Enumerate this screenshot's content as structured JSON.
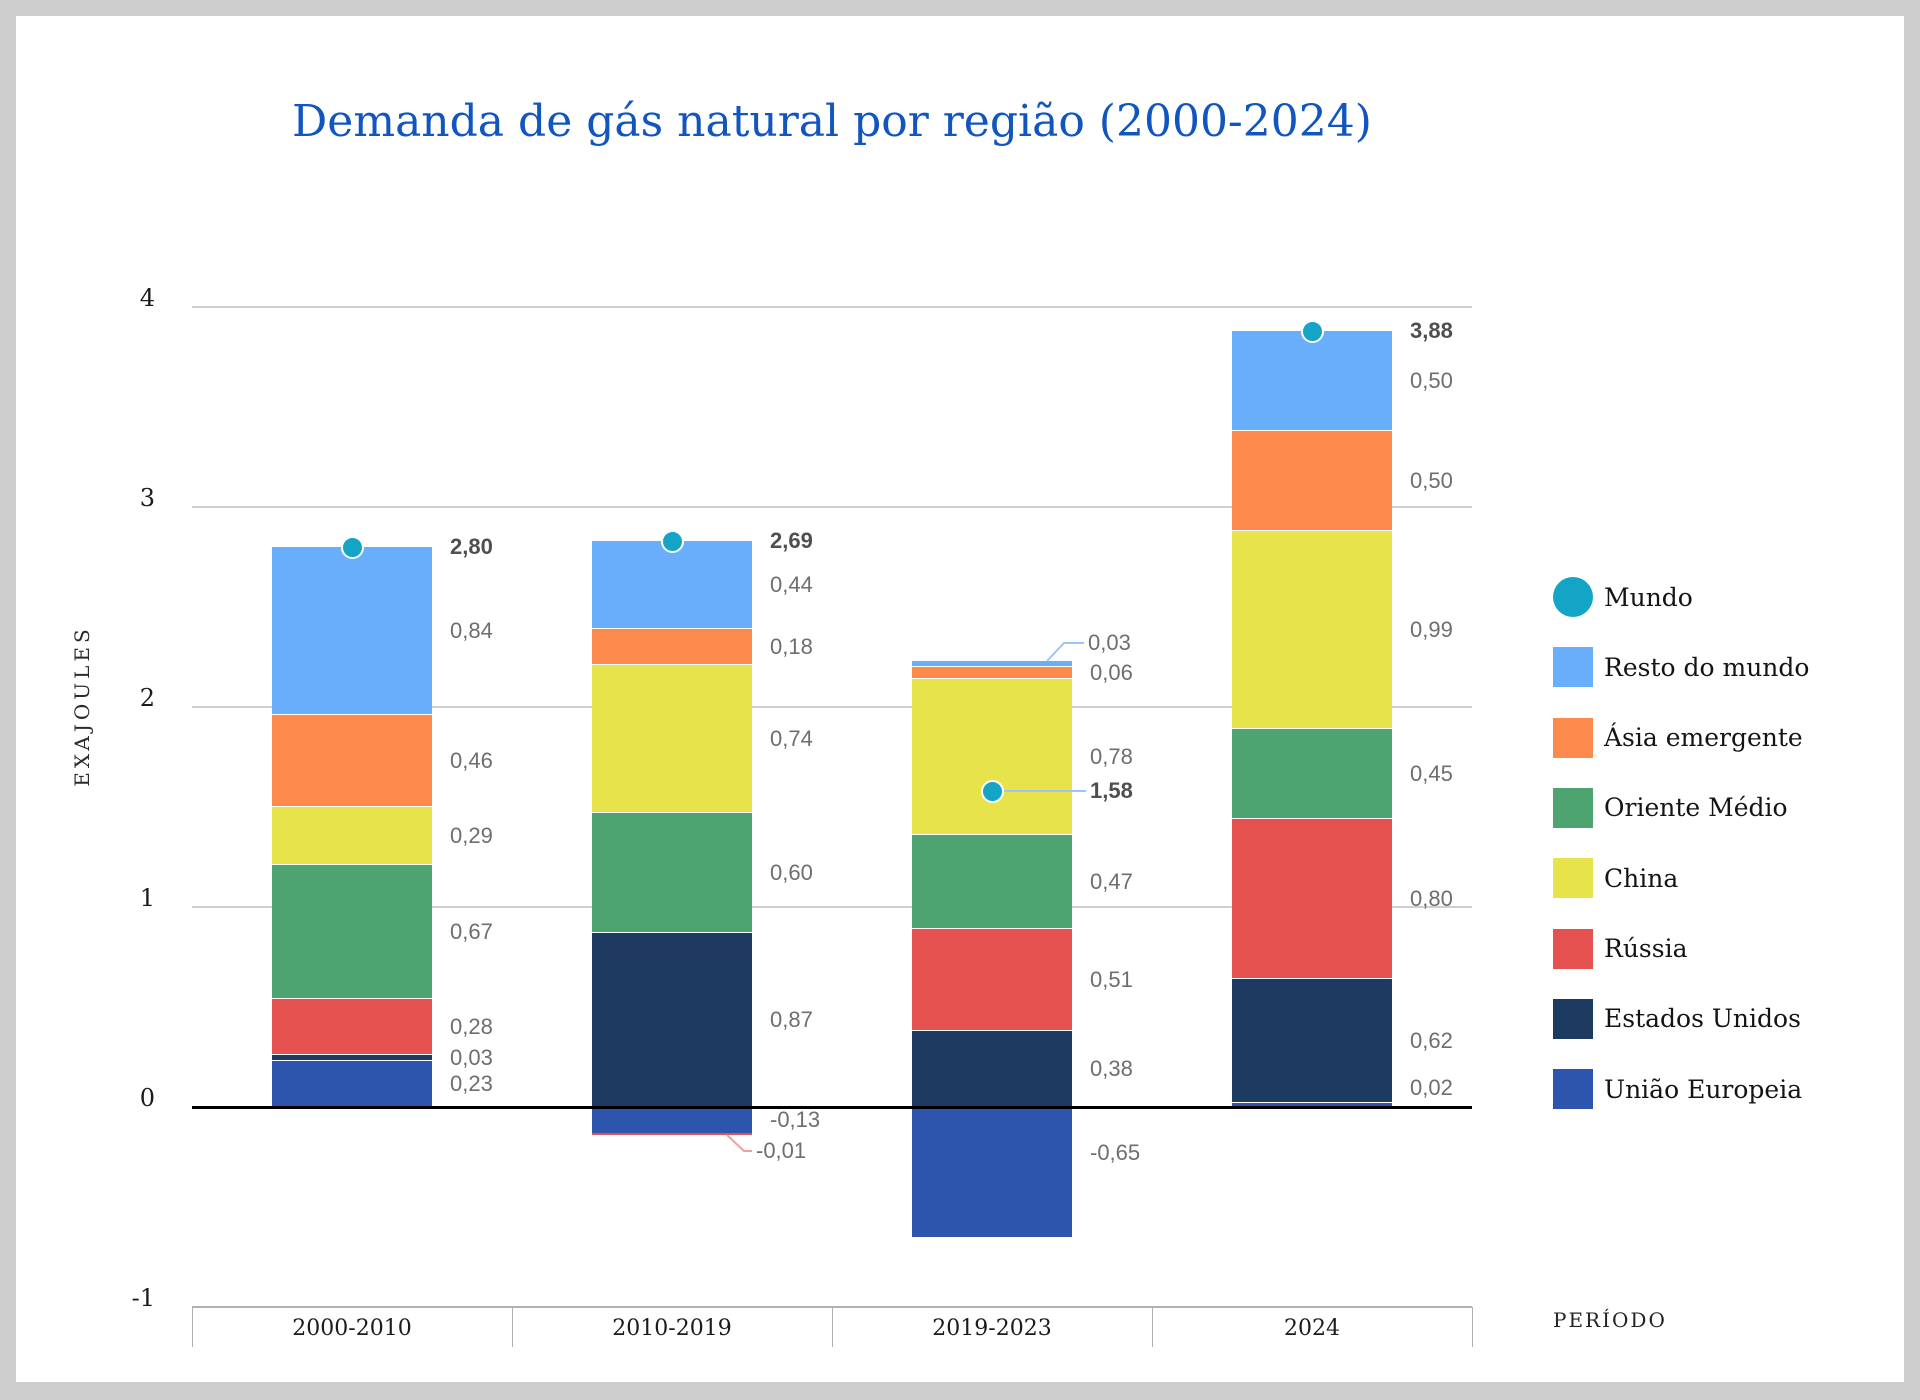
{
  "title": {
    "text": "Demanda de gás natural por região (2000-2024)"
  },
  "y_axis": {
    "title": "EXAJOULES",
    "ticks": [
      4,
      3,
      2,
      1,
      0,
      -1
    ]
  },
  "x_axis": {
    "title": "PERÍODO"
  },
  "legend": [
    {
      "label": "Mundo",
      "color": "#14a4c5",
      "shape": "circle"
    },
    {
      "label": "Resto do mundo",
      "color": "#68aefa",
      "shape": "square"
    },
    {
      "label": "Ásia emergente",
      "color": "#fc8a4d",
      "shape": "square"
    },
    {
      "label": "Oriente Médio",
      "color": "#4da471",
      "shape": "square"
    },
    {
      "label": "China",
      "color": "#e7e34b",
      "shape": "square"
    },
    {
      "label": "Rússia",
      "color": "#e5514f",
      "shape": "square"
    },
    {
      "label": "Estados Unidos",
      "color": "#1d3a60",
      "shape": "square"
    },
    {
      "label": "União Europeia",
      "color": "#2d55ad",
      "shape": "square"
    }
  ],
  "chart_data": {
    "type": "bar",
    "stacked": true,
    "title": "Demanda de gás natural por região (2000-2024)",
    "xlabel": "PERÍODO",
    "ylabel": "EXAJOULES",
    "ylim": [
      -1,
      4
    ],
    "decimal_separator": ",",
    "grid": true,
    "legend_position": "right",
    "categories": [
      "2000-2010",
      "2010-2019",
      "2019-2023",
      "2024"
    ],
    "series": [
      {
        "name": "União Europeia",
        "color": "#2d55ad",
        "values": [
          0.23,
          -0.13,
          -0.65,
          0.02
        ]
      },
      {
        "name": "Estados Unidos",
        "color": "#1d3a60",
        "values": [
          0.03,
          0.87,
          0.38,
          0.62
        ]
      },
      {
        "name": "Rússia",
        "color": "#e5514f",
        "values": [
          0.28,
          -0.01,
          0.51,
          0.8
        ]
      },
      {
        "name": "Oriente Médio",
        "color": "#4da471",
        "values": [
          0.67,
          0.6,
          0.47,
          0.45
        ]
      },
      {
        "name": "China",
        "color": "#e7e34b",
        "values": [
          0.29,
          0.74,
          0.78,
          0.99
        ]
      },
      {
        "name": "Ásia emergente",
        "color": "#fc8a4d",
        "values": [
          0.46,
          0.18,
          0.06,
          0.5
        ]
      },
      {
        "name": "Resto do mundo",
        "color": "#68aefa",
        "values": [
          0.84,
          0.44,
          0.03,
          0.5
        ]
      }
    ],
    "world_series": {
      "name": "Mundo",
      "color": "#14a4c5",
      "totals": [
        2.8,
        2.69,
        1.58,
        3.88
      ],
      "marker_positions": [
        2.8,
        2.83,
        1.58,
        3.88
      ]
    },
    "label_overrides": [
      {
        "category_index": 1,
        "series": "Rússia",
        "label_at": -0.22,
        "leader": "red"
      },
      {
        "category_index": 2,
        "series": "Resto do mundo",
        "label_at": 2.32,
        "leader": "blue"
      },
      {
        "category_index": 2,
        "series": "União Europeia",
        "label_at": -0.23
      },
      {
        "category_index": 3,
        "series": "União Europeia",
        "label_at": 0.095
      }
    ]
  },
  "colors": {
    "title": "#1156bf",
    "value_label": "#6d6e71",
    "total_label": "#4e4f51",
    "axis_text": "#1b1b1b",
    "grid": "#cfcfcf",
    "grid_dark": "#b0b0b0",
    "zero_line": "#000000",
    "leader_blue": "#9fc4f5",
    "leader_red": "#f0a09f",
    "card_bg": "#ffffff",
    "frame_bg": "#cdcdcd"
  }
}
